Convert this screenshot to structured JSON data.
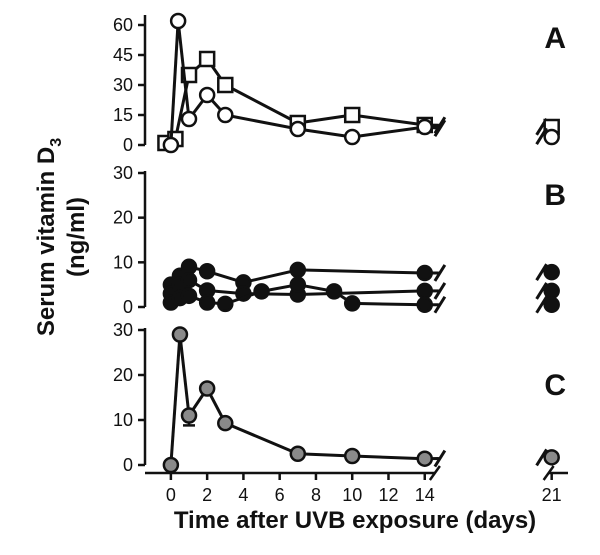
{
  "figure": {
    "ylabel_line1": "Serum vitamin D",
    "ylabel_subscript": "3",
    "ylabel_line2": "(ng/ml)",
    "xlabel": "Time after UVB exposure (days)",
    "colors": {
      "axis": "#111111",
      "open_fill": "#ffffff",
      "filled_black": "#111111",
      "filled_gray": "#8a8a8a"
    }
  },
  "chart_data": [
    {
      "panel": "A",
      "type": "line",
      "xlim": [
        -0.6,
        21.9
      ],
      "ylim": [
        0,
        64
      ],
      "yticks": [
        0,
        15,
        30,
        45,
        60
      ],
      "xticks": [
        0,
        2,
        4,
        6,
        8,
        10,
        12,
        14,
        21
      ],
      "axis_break_between": [
        15,
        20.5
      ],
      "series": [
        {
          "name": "open-square",
          "marker": "square",
          "fill": "open",
          "x": [
            -0.3,
            0.25,
            1,
            2,
            3,
            7,
            10,
            14,
            21
          ],
          "y": [
            1,
            3,
            35,
            43,
            30,
            11,
            15,
            10,
            9
          ]
        },
        {
          "name": "open-circle",
          "marker": "circle",
          "fill": "open",
          "x": [
            0,
            0.4,
            1,
            2,
            3,
            7,
            10,
            14,
            21
          ],
          "y": [
            0,
            62,
            13,
            25,
            15,
            8,
            4,
            9,
            4
          ]
        }
      ]
    },
    {
      "panel": "B",
      "type": "line",
      "xlim": [
        -0.6,
        21.9
      ],
      "ylim": [
        0,
        30
      ],
      "yticks": [
        0,
        10,
        20,
        30
      ],
      "xticks": [
        0,
        2,
        4,
        6,
        8,
        10,
        12,
        14,
        21
      ],
      "axis_break_between": [
        15,
        20.5
      ],
      "series": [
        {
          "name": "subject-1",
          "marker": "circle",
          "fill": "black",
          "x": [
            0,
            0.5,
            1,
            2,
            4,
            7,
            14,
            21
          ],
          "y": [
            5,
            7,
            9,
            8,
            5.5,
            8.3,
            7.6,
            7.8
          ]
        },
        {
          "name": "subject-2",
          "marker": "circle",
          "fill": "black",
          "x": [
            0,
            0.5,
            1,
            2,
            4,
            7,
            14,
            21
          ],
          "y": [
            3,
            5,
            6,
            3.7,
            3,
            2.8,
            3.6,
            3.6
          ]
        },
        {
          "name": "subject-3",
          "marker": "circle",
          "fill": "black",
          "x": [
            0,
            0.5,
            1,
            2,
            3,
            5,
            7,
            9,
            10,
            14,
            21
          ],
          "y": [
            1,
            2,
            2.5,
            1,
            0.7,
            3.5,
            5,
            3.5,
            0.8,
            0.5,
            0.5
          ]
        }
      ]
    },
    {
      "panel": "C",
      "type": "line",
      "xlim": [
        -0.6,
        21.9
      ],
      "ylim": [
        0,
        30
      ],
      "yticks": [
        0,
        10,
        20,
        30
      ],
      "xticks": [
        0,
        2,
        4,
        6,
        8,
        10,
        12,
        14,
        21
      ],
      "xtick_labels": [
        "0",
        "2",
        "4",
        "6",
        "8",
        "10",
        "12",
        "14",
        "21"
      ],
      "axis_break_between": [
        15,
        20.5
      ],
      "series": [
        {
          "name": "mean",
          "marker": "circle",
          "fill": "gray",
          "x": [
            0,
            0.5,
            1,
            2,
            3,
            7,
            10,
            14,
            21
          ],
          "y": [
            0,
            29,
            11,
            17,
            9.3,
            2.5,
            2,
            1.4,
            1.7
          ],
          "error_down": [
            0,
            0,
            2.2,
            0,
            0,
            0,
            0,
            0,
            0
          ]
        }
      ]
    }
  ]
}
